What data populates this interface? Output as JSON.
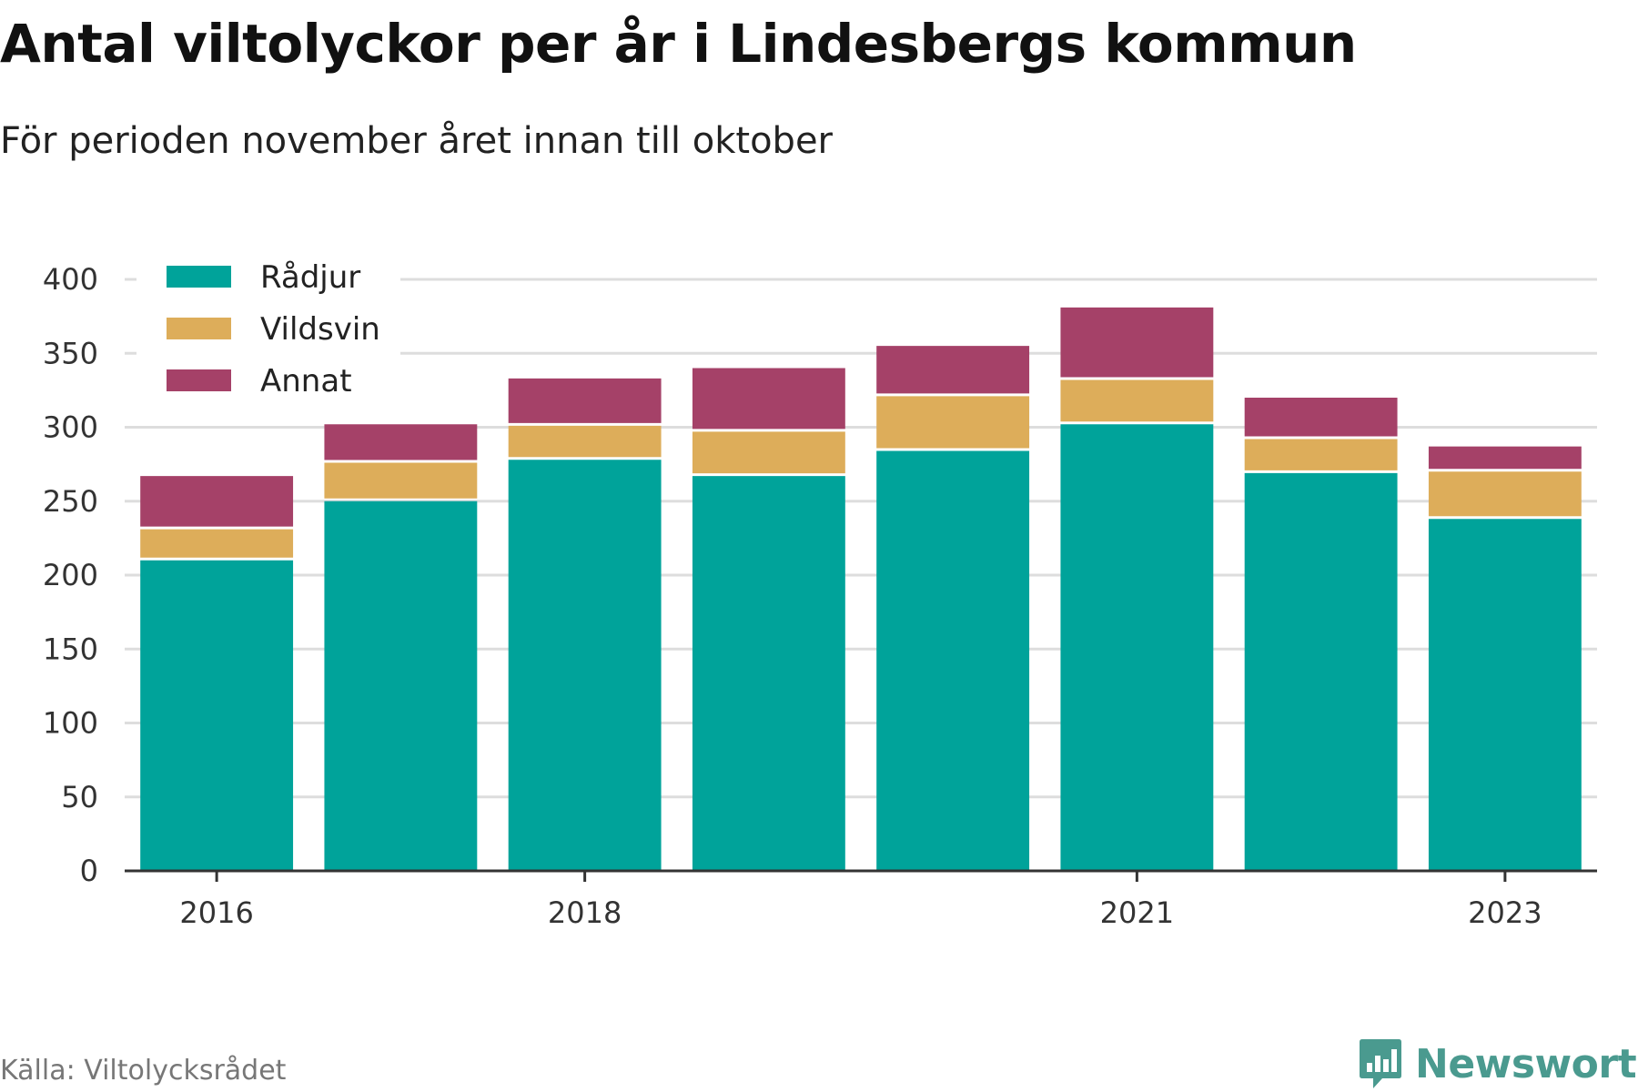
{
  "title": "Antal viltolyckor per år i Lindesbergs kommun",
  "subtitle": "För perioden november året innan till oktober",
  "source": "Källa: Viltolycksrådet",
  "brand": "Newsworthy",
  "colors": {
    "Rådjur": "#00a39a",
    "Vildsvin": "#ddad5a",
    "Annat": "#a54168",
    "grid": "#dddddd",
    "axis": "#333333",
    "brand": "#4a9a8f"
  },
  "chart_data": {
    "type": "bar",
    "stacked": true,
    "title": "Antal viltolyckor per år i Lindesbergs kommun",
    "subtitle": "För perioden november året innan till oktober",
    "categories": [
      "2016",
      "2017",
      "2018",
      "2019",
      "2020",
      "2021",
      "2022",
      "2023"
    ],
    "x_tick_labels": [
      "2016",
      "2018",
      "2021",
      "2023"
    ],
    "y_ticks": [
      0,
      50,
      100,
      150,
      200,
      250,
      300,
      350,
      400
    ],
    "ylim": [
      0,
      400
    ],
    "grid": true,
    "legend_position": "top-left",
    "series": [
      {
        "name": "Rådjur",
        "values": [
          210,
          250,
          278,
          267,
          284,
          302,
          269,
          238
        ]
      },
      {
        "name": "Vildsvin",
        "values": [
          21,
          26,
          23,
          30,
          37,
          30,
          23,
          32
        ]
      },
      {
        "name": "Annat",
        "values": [
          36,
          26,
          32,
          43,
          34,
          49,
          28,
          17
        ]
      }
    ]
  }
}
